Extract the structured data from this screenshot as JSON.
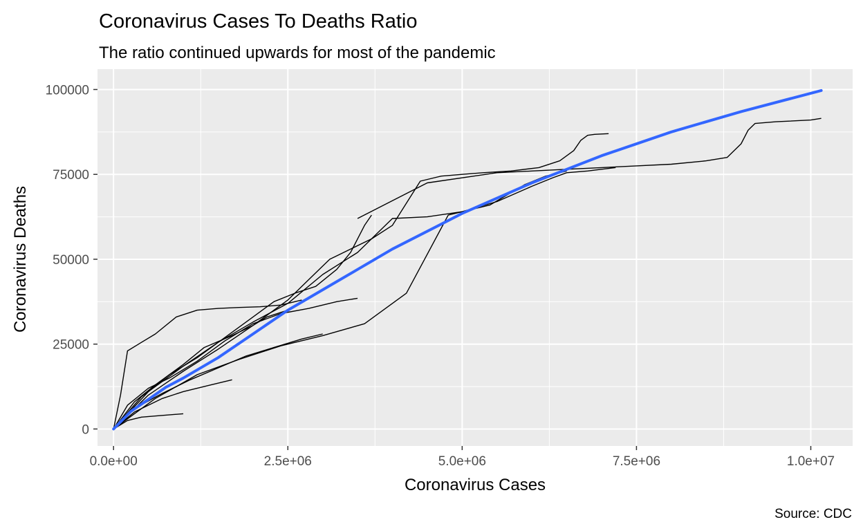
{
  "chart_data": {
    "type": "line",
    "title": "Coronavirus Cases To Deaths Ratio",
    "subtitle": "The ratio continued upwards for most of the pandemic",
    "xlabel": "Coronavirus Cases",
    "ylabel": "Coronavirus Deaths",
    "caption": "Source: CDC",
    "xlim": [
      -230000,
      10600000
    ],
    "ylim": [
      -5000,
      106000
    ],
    "x_ticks": [
      0,
      2500000,
      5000000,
      7500000,
      10000000
    ],
    "x_tick_labels": [
      "0.0e+00",
      "2.5e+06",
      "5.0e+06",
      "7.5e+06",
      "1.0e+07"
    ],
    "y_ticks": [
      0,
      25000,
      50000,
      75000,
      100000
    ],
    "y_tick_labels": [
      "0",
      "25000",
      "50000",
      "75000",
      "100000"
    ],
    "grid": true,
    "panel_color": "#ebebeb",
    "trend_color": "#3366ff",
    "line_color": "#000000",
    "trend_line": {
      "x": [
        0,
        250000,
        500000,
        750000,
        1000000,
        1500000,
        2000000,
        2500000,
        3000000,
        3500000,
        4000000,
        5000000,
        6000000,
        7000000,
        8000000,
        9000000,
        10150000
      ],
      "y": [
        0,
        5200,
        8700,
        12300,
        15000,
        21000,
        28000,
        35000,
        41000,
        47000,
        53000,
        63500,
        72500,
        80500,
        87500,
        93500,
        99700
      ]
    },
    "series": [
      {
        "x": [
          0,
          100000,
          200000,
          400000,
          600000,
          900000,
          1200000,
          1500000,
          1800000,
          2100000,
          2400000,
          2700000
        ],
        "y": [
          0,
          10000,
          23000,
          25500,
          28000,
          33000,
          35000,
          35500,
          35800,
          36000,
          36500,
          38000
        ]
      },
      {
        "x": [
          0,
          200000,
          500000,
          800000,
          1200000,
          1600000,
          2000000,
          2400000,
          2800000,
          3200000,
          3500000
        ],
        "y": [
          0,
          7000,
          12000,
          15000,
          20000,
          26000,
          31000,
          34000,
          35500,
          37500,
          38500
        ]
      },
      {
        "x": [
          0,
          300000,
          700000,
          1100000,
          1500000,
          1900000,
          2300000,
          2700000,
          3000000
        ],
        "y": [
          0,
          6000,
          10500,
          14500,
          18000,
          21500,
          24000,
          26500,
          28000
        ]
      },
      {
        "x": [
          0,
          300000,
          700000,
          1000000,
          1400000,
          1700000
        ],
        "y": [
          0,
          5000,
          9000,
          11000,
          13000,
          14500
        ]
      },
      {
        "x": [
          0,
          200000,
          400000,
          700000,
          1000000
        ],
        "y": [
          0,
          2500,
          3500,
          4000,
          4500
        ]
      },
      {
        "x": [
          0,
          300000,
          600000,
          1000000,
          1300000,
          1700000,
          2000000,
          2200000,
          2500000
        ],
        "y": [
          0,
          8000,
          13000,
          19000,
          24000,
          27500,
          30500,
          33000,
          35000
        ]
      },
      {
        "x": [
          0,
          400000,
          800000,
          1200000,
          1600000,
          2000000,
          2300000,
          2600000,
          2900000,
          3200000,
          3400000,
          3600000,
          3700000
        ],
        "y": [
          0,
          9500,
          16000,
          21000,
          27000,
          33000,
          37500,
          40000,
          42000,
          47000,
          52000,
          60000,
          63000
        ]
      },
      {
        "x": [
          0,
          500000,
          1000000,
          1500000,
          2000000,
          2500000,
          2800000,
          3100000,
          3400000,
          3700000,
          4000000,
          4400000,
          4700000,
          5000000,
          5300000,
          5700000,
          6100000,
          6400000,
          6600000,
          6700000,
          6800000,
          6900000,
          7100000
        ],
        "y": [
          0,
          10000,
          17000,
          23500,
          30500,
          38000,
          44000,
          50000,
          53000,
          56000,
          60000,
          73000,
          74500,
          75000,
          75500,
          76000,
          77000,
          79000,
          82000,
          85000,
          86500,
          86800,
          87000
        ]
      },
      {
        "x": [
          0,
          500000,
          1000000,
          1500000,
          2000000,
          2500000,
          3000000,
          3500000,
          4000000,
          4500000,
          5000000,
          5500000,
          6000000,
          6300000,
          6500000,
          6800000,
          7000000,
          7200000
        ],
        "y": [
          0,
          11000,
          18500,
          25500,
          31500,
          37000,
          45500,
          52000,
          62000,
          62500,
          64000,
          67000,
          71500,
          74000,
          75500,
          76000,
          76500,
          77000
        ]
      },
      {
        "x": [
          0,
          600000,
          1200000,
          1800000,
          2400000,
          3000000,
          3600000,
          4200000,
          4800000,
          5400000,
          5900000,
          6200000,
          6500000
        ],
        "y": [
          0,
          9000,
          16000,
          20500,
          24500,
          27500,
          31000,
          40000,
          63000,
          66000,
          72000,
          74500,
          76000
        ]
      },
      {
        "x": [
          3500000,
          4500000,
          5500000,
          6500000,
          7000000,
          7500000,
          8000000,
          8500000,
          8800000,
          9000000,
          9100000,
          9200000,
          9500000,
          10000000,
          10150000
        ],
        "y": [
          62000,
          72500,
          75500,
          76500,
          77000,
          77500,
          78000,
          79000,
          80000,
          84000,
          88000,
          90000,
          90500,
          91000,
          91500
        ]
      }
    ]
  }
}
